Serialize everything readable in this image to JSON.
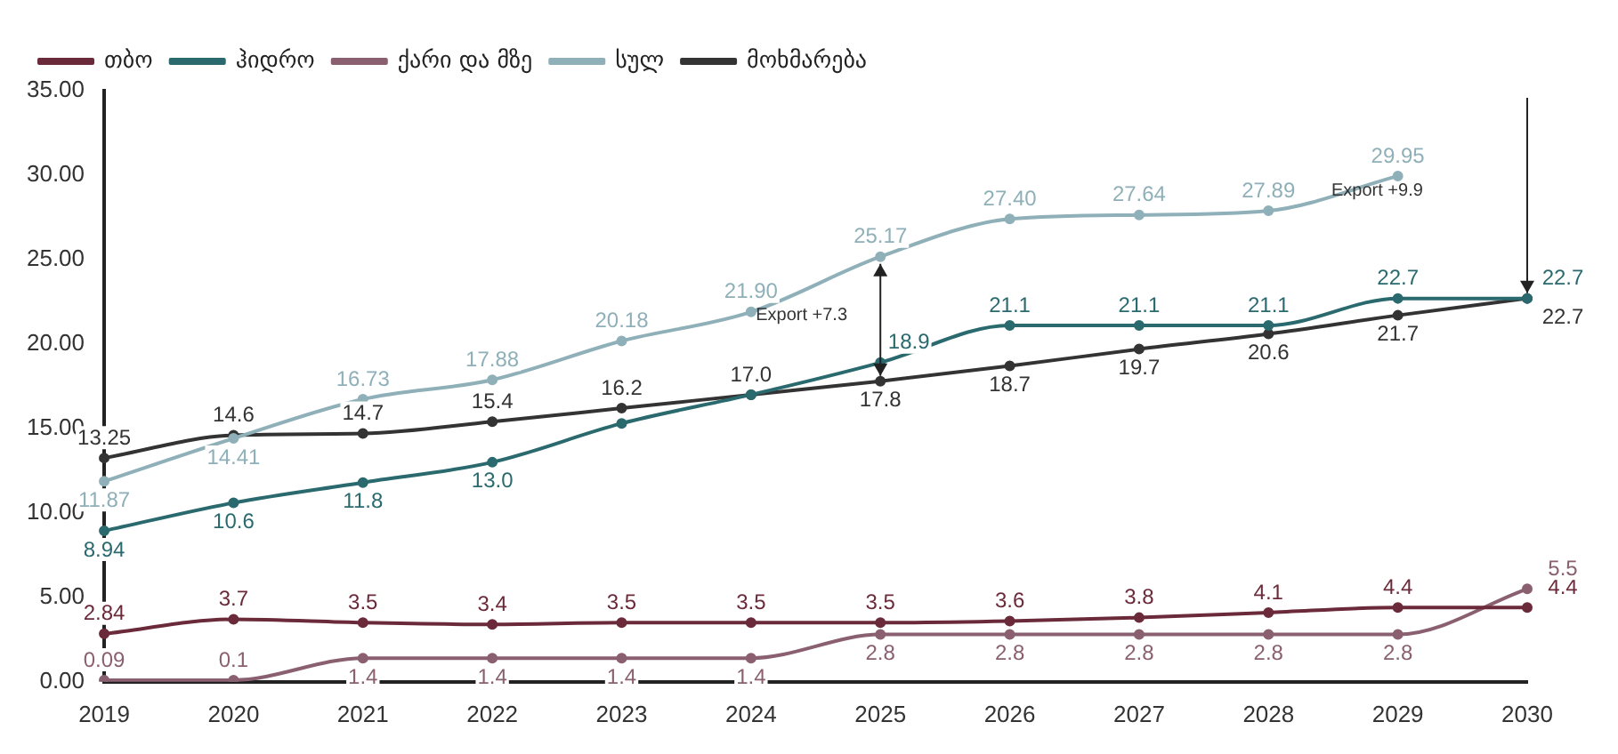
{
  "chart_data": {
    "type": "line",
    "categories": [
      "2019",
      "2020",
      "2021",
      "2022",
      "2023",
      "2024",
      "2025",
      "2026",
      "2027",
      "2028",
      "2029",
      "2030"
    ],
    "series": [
      {
        "name": "თბო",
        "color": "#6b2a3a",
        "values": [
          2.84,
          3.7,
          3.5,
          3.4,
          3.5,
          3.5,
          3.5,
          3.6,
          3.8,
          4.1,
          4.4,
          4.4
        ]
      },
      {
        "name": "ჰიდრო",
        "color": "#2a6a6e",
        "values": [
          8.94,
          10.6,
          11.8,
          13.0,
          15.3,
          17.0,
          18.9,
          21.1,
          21.1,
          21.1,
          22.7,
          22.7
        ],
        "value_labels": [
          "8.94",
          "10.6",
          "11.8",
          "13.0",
          null,
          null,
          "18.9",
          "21.1",
          "21.1",
          "21.1",
          "22.7",
          "22.7"
        ]
      },
      {
        "name": "ქარი და მზე",
        "color": "#8a6070",
        "values": [
          0.09,
          0.1,
          1.4,
          1.4,
          1.4,
          1.4,
          2.8,
          2.8,
          2.8,
          2.8,
          2.8,
          5.5
        ]
      },
      {
        "name": "სულ",
        "color": "#8fb0b8",
        "values": [
          11.87,
          14.41,
          16.73,
          17.88,
          20.18,
          21.9,
          25.17,
          27.4,
          27.64,
          27.89,
          29.95,
          null
        ],
        "value_labels": [
          "11.87",
          "14.41",
          "16.73",
          "17.88",
          "20.18",
          "21.90",
          "25.17",
          "27.40",
          "27.64",
          "27.89",
          "29.95",
          null
        ]
      },
      {
        "name": "მოხმარება",
        "color": "#333333",
        "values": [
          13.25,
          14.6,
          14.7,
          15.4,
          16.2,
          17.0,
          17.8,
          18.7,
          19.7,
          20.6,
          21.7,
          22.7
        ],
        "value_labels": [
          "13.25",
          "14.6",
          "14.7",
          "15.4",
          "16.2",
          "17.0",
          "17.8",
          "18.7",
          "19.7",
          "20.6",
          "21.7",
          "22.7"
        ]
      }
    ],
    "ylim": [
      0,
      35
    ],
    "yticks": [
      {
        "value": 0,
        "label": "0.00"
      },
      {
        "value": 5,
        "label": "5.00"
      },
      {
        "value": 10,
        "label": "10.00"
      },
      {
        "value": 15,
        "label": "15.00"
      },
      {
        "value": 20,
        "label": "20.00"
      },
      {
        "value": 25,
        "label": "25.00"
      },
      {
        "value": 30,
        "label": "30.00"
      },
      {
        "value": 35,
        "label": "35.00"
      }
    ],
    "data_labels": true,
    "grid": false,
    "legend": "top left",
    "marker": "circle",
    "annotations": [
      "Export +7.3",
      "Export +9.9"
    ]
  }
}
